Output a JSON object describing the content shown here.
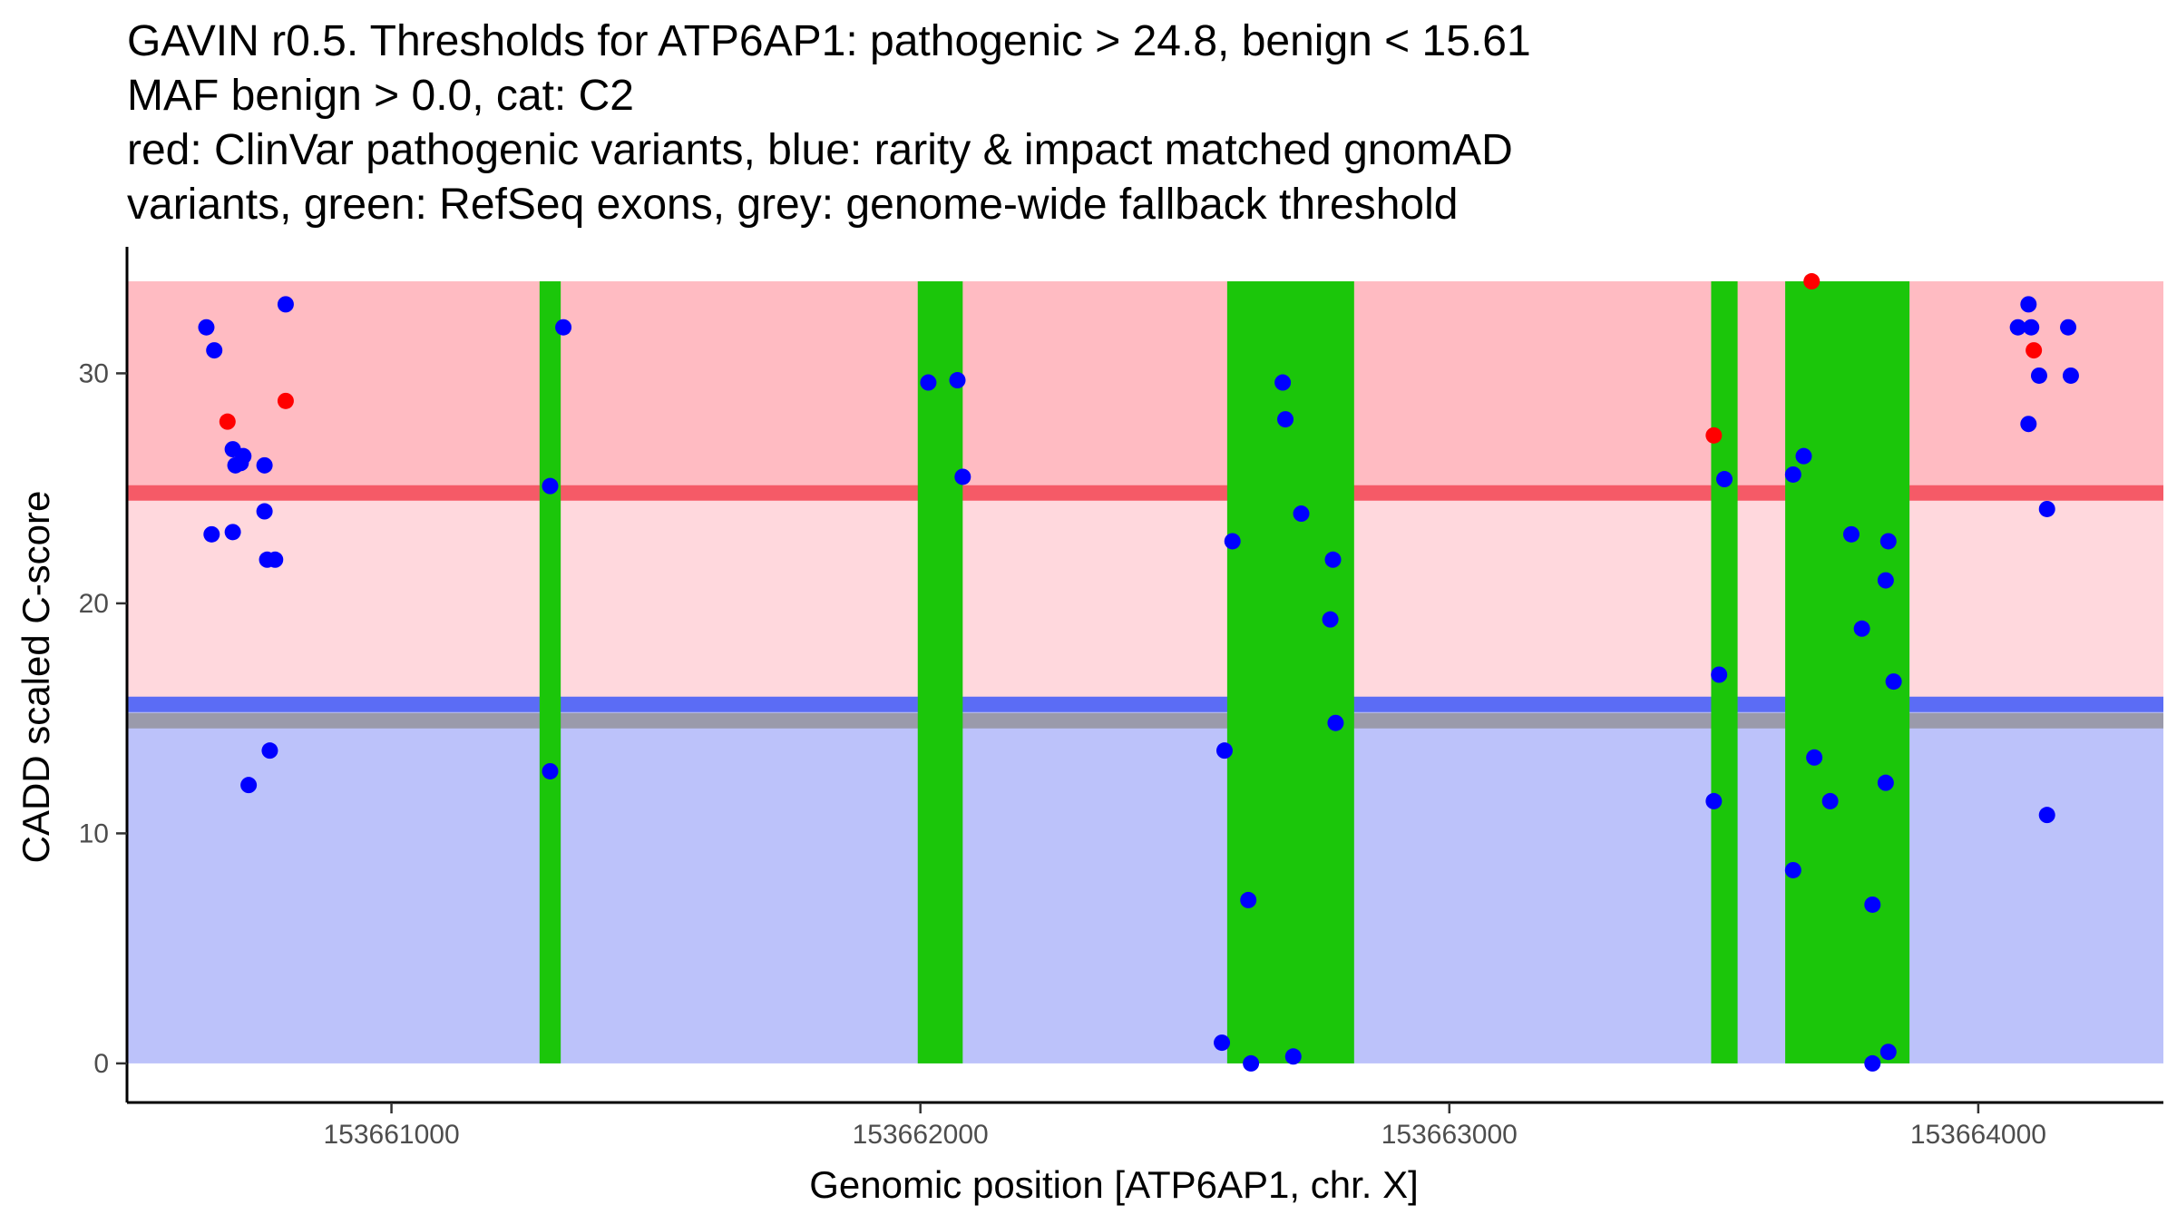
{
  "chart_data": {
    "type": "scatter",
    "title_lines": [
      "GAVIN r0.5. Thresholds for ATP6AP1: pathogenic > 24.8, benign < 15.61",
      "MAF benign > 0.0, cat: C2",
      "red: ClinVar pathogenic variants, blue: rarity & impact matched gnomAD",
      "variants, green: RefSeq exons, grey: genome-wide fallback threshold"
    ],
    "xlabel": "Genomic position [ATP6AP1, chr. X]",
    "ylabel": "CADD scaled C-score",
    "xlim": [
      153660500,
      153664350
    ],
    "ylim": [
      -1.7,
      35.5
    ],
    "x_ticks": [
      {
        "value": 153661000,
        "label": "153661000"
      },
      {
        "value": 153662000,
        "label": "153662000"
      },
      {
        "value": 153663000,
        "label": "153663000"
      },
      {
        "value": 153664000,
        "label": "153664000"
      }
    ],
    "y_ticks": [
      {
        "value": 0,
        "label": "0"
      },
      {
        "value": 10,
        "label": "10"
      },
      {
        "value": 20,
        "label": "20"
      },
      {
        "value": 30,
        "label": "30"
      }
    ],
    "regions": {
      "pathogenic": {
        "from": 24.8,
        "to": 34,
        "color": "#FFBBC2"
      },
      "vus": {
        "from": 15.61,
        "to": 24.8,
        "color": "#FFD8DD"
      },
      "benign": {
        "from": 0,
        "to": 15.61,
        "color": "#BCC2FA"
      },
      "pathogenic_threshold": {
        "value": 24.8,
        "color": "#F55A67"
      },
      "benign_threshold": {
        "value": 15.61,
        "color": "#5B6CF5"
      },
      "fallback_threshold": {
        "value": 14.9,
        "color": "#9A9AAB"
      }
    },
    "exons": [
      {
        "start": 153661280,
        "end": 153661320
      },
      {
        "start": 153661995,
        "end": 153662080
      },
      {
        "start": 153662580,
        "end": 153662820
      },
      {
        "start": 153663495,
        "end": 153663545
      },
      {
        "start": 153663635,
        "end": 153663870
      }
    ],
    "colors": {
      "pathogenic": "#FF0000",
      "population": "#0000FF",
      "exon": "#1BC60A"
    },
    "series": [
      {
        "name": "ClinVar pathogenic",
        "points": [
          {
            "x": 153660690,
            "y": 27.9
          },
          {
            "x": 153660800,
            "y": 28.8
          },
          {
            "x": 153663500,
            "y": 27.3
          },
          {
            "x": 153663685,
            "y": 34.0
          },
          {
            "x": 153664105,
            "y": 31.0
          }
        ]
      },
      {
        "name": "gnomAD matched",
        "points": [
          {
            "x": 153660650,
            "y": 32.0
          },
          {
            "x": 153660665,
            "y": 31.0
          },
          {
            "x": 153660660,
            "y": 23.0
          },
          {
            "x": 153660700,
            "y": 26.7
          },
          {
            "x": 153660720,
            "y": 26.4
          },
          {
            "x": 153660705,
            "y": 26.0
          },
          {
            "x": 153660715,
            "y": 26.1
          },
          {
            "x": 153660760,
            "y": 26.0
          },
          {
            "x": 153660700,
            "y": 23.1
          },
          {
            "x": 153660760,
            "y": 24.0
          },
          {
            "x": 153660765,
            "y": 21.9
          },
          {
            "x": 153660780,
            "y": 21.9
          },
          {
            "x": 153660800,
            "y": 33.0
          },
          {
            "x": 153660770,
            "y": 13.6
          },
          {
            "x": 153660730,
            "y": 12.1
          },
          {
            "x": 153661300,
            "y": 25.1
          },
          {
            "x": 153661300,
            "y": 12.7
          },
          {
            "x": 153661325,
            "y": 32.0
          },
          {
            "x": 153662015,
            "y": 29.6
          },
          {
            "x": 153662070,
            "y": 29.7
          },
          {
            "x": 153662080,
            "y": 25.5
          },
          {
            "x": 153662590,
            "y": 22.7
          },
          {
            "x": 153662575,
            "y": 13.6
          },
          {
            "x": 153662620,
            "y": 7.1
          },
          {
            "x": 153662570,
            "y": 0.9
          },
          {
            "x": 153662625,
            "y": 0.0
          },
          {
            "x": 153662685,
            "y": 29.6
          },
          {
            "x": 153662690,
            "y": 28.0
          },
          {
            "x": 153662720,
            "y": 23.9
          },
          {
            "x": 153662780,
            "y": 21.9
          },
          {
            "x": 153662775,
            "y": 19.3
          },
          {
            "x": 153662785,
            "y": 14.8
          },
          {
            "x": 153662705,
            "y": 0.3
          },
          {
            "x": 153663520,
            "y": 25.4
          },
          {
            "x": 153663510,
            "y": 16.9
          },
          {
            "x": 153663500,
            "y": 11.4
          },
          {
            "x": 153663650,
            "y": 25.6
          },
          {
            "x": 153663670,
            "y": 26.4
          },
          {
            "x": 153663650,
            "y": 8.4
          },
          {
            "x": 153663690,
            "y": 13.3
          },
          {
            "x": 153663720,
            "y": 11.4
          },
          {
            "x": 153663760,
            "y": 23.0
          },
          {
            "x": 153663780,
            "y": 18.9
          },
          {
            "x": 153663800,
            "y": 6.9
          },
          {
            "x": 153663800,
            "y": 0.0
          },
          {
            "x": 153663830,
            "y": 22.7
          },
          {
            "x": 153663825,
            "y": 21.0
          },
          {
            "x": 153663825,
            "y": 12.2
          },
          {
            "x": 153663830,
            "y": 0.5
          },
          {
            "x": 153663840,
            "y": 16.6
          },
          {
            "x": 153664075,
            "y": 32.0
          },
          {
            "x": 153664095,
            "y": 33.0
          },
          {
            "x": 153664100,
            "y": 32.0
          },
          {
            "x": 153664115,
            "y": 29.9
          },
          {
            "x": 153664095,
            "y": 27.8
          },
          {
            "x": 153664170,
            "y": 32.0
          },
          {
            "x": 153664175,
            "y": 29.9
          },
          {
            "x": 153664130,
            "y": 24.1
          },
          {
            "x": 153664130,
            "y": 10.8
          }
        ]
      }
    ]
  }
}
